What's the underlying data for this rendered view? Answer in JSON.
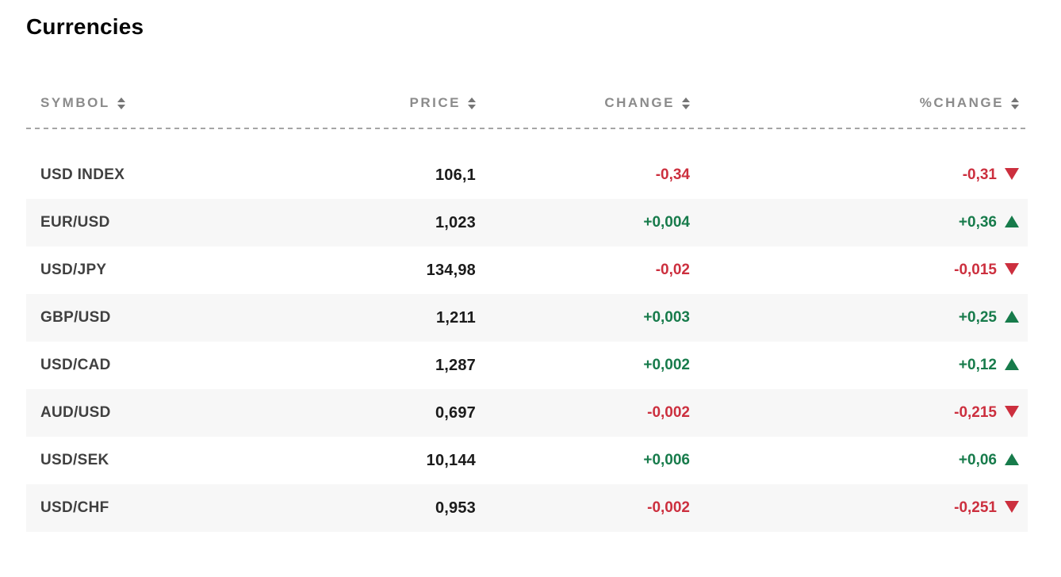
{
  "page": {
    "title": "Currencies"
  },
  "table": {
    "columns": [
      {
        "key": "symbol",
        "label": "SYMBOL",
        "align": "left",
        "sortable": true,
        "sort_icon": "up-down-sort-icon"
      },
      {
        "key": "price",
        "label": "PRICE",
        "align": "right",
        "sortable": true,
        "sort_icon": "up-down-sort-icon"
      },
      {
        "key": "change",
        "label": "CHANGE",
        "align": "right",
        "sortable": true,
        "sort_icon": "up-down-sort-icon"
      },
      {
        "key": "pct_change",
        "label": "%CHANGE",
        "align": "right",
        "sortable": true,
        "sort_icon": "up-down-sort-icon"
      }
    ],
    "rows": [
      {
        "symbol": "USD INDEX",
        "price": "106,1",
        "change": "-0,34",
        "pct_change": "-0,31",
        "direction": "down"
      },
      {
        "symbol": "EUR/USD",
        "price": "1,023",
        "change": "+0,004",
        "pct_change": "+0,36",
        "direction": "up"
      },
      {
        "symbol": "USD/JPY",
        "price": "134,98",
        "change": "-0,02",
        "pct_change": "-0,015",
        "direction": "down"
      },
      {
        "symbol": "GBP/USD",
        "price": "1,211",
        "change": "+0,003",
        "pct_change": "+0,25",
        "direction": "up"
      },
      {
        "symbol": "USD/CAD",
        "price": "1,287",
        "change": "+0,002",
        "pct_change": "+0,12",
        "direction": "up"
      },
      {
        "symbol": "AUD/USD",
        "price": "0,697",
        "change": "-0,002",
        "pct_change": "-0,215",
        "direction": "down"
      },
      {
        "symbol": "USD/SEK",
        "price": "10,144",
        "change": "+0,006",
        "pct_change": "+0,06",
        "direction": "up"
      },
      {
        "symbol": "USD/CHF",
        "price": "0,953",
        "change": "-0,002",
        "pct_change": "-0,251",
        "direction": "down"
      }
    ]
  },
  "colors": {
    "positive": "#177b4b",
    "negative": "#cc2f3e",
    "header_text": "#8b8b8b",
    "symbol_text": "#404040",
    "price_text": "#1b1b1b",
    "row_stripe": "#f7f7f7"
  }
}
